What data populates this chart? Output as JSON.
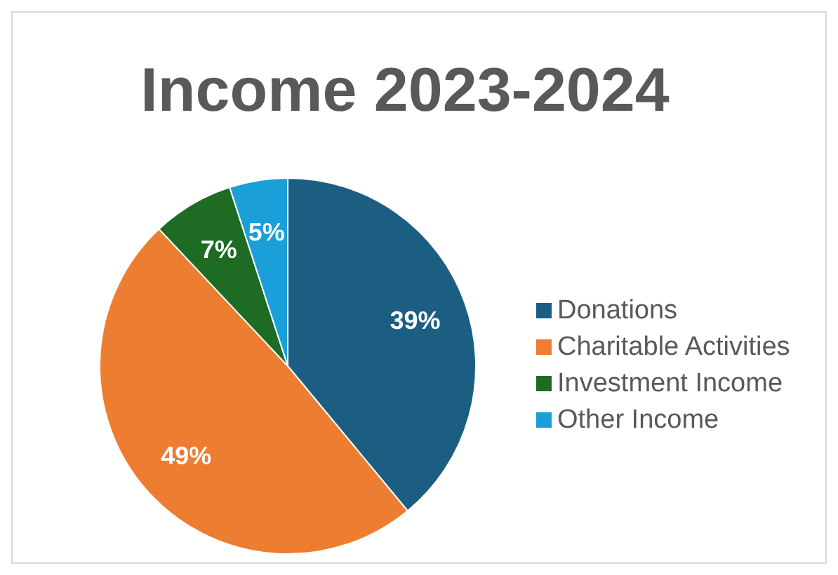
{
  "chart_data": {
    "type": "pie",
    "title": "Income 2023-2024",
    "categories": [
      "Donations",
      "Charitable Activities",
      "Investment Income",
      "Other Income"
    ],
    "values": [
      39,
      49,
      7,
      5
    ],
    "colors": [
      "#1b5e82",
      "#ed7d31",
      "#1e6b24",
      "#1a9fd8"
    ],
    "value_labels": [
      "39%",
      "49%",
      "7%",
      "5%"
    ],
    "legend": "right"
  }
}
